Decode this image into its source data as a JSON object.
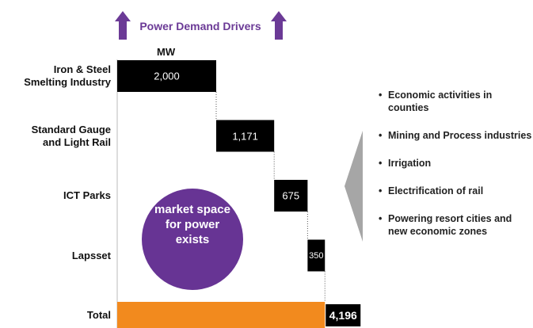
{
  "chart_data": {
    "type": "waterfall",
    "title": "Power Demand Drivers",
    "axis_label": "MW",
    "categories": [
      "Iron & Steel\nSmelting Industry",
      "Standard Gauge\nand Light Rail",
      "ICT Parks",
      "Lapsset",
      "Total"
    ],
    "values": [
      2000,
      1171,
      675,
      350,
      4196
    ],
    "value_labels": [
      "2,000",
      "1,171",
      "675",
      "350",
      "4,196"
    ],
    "color": "#000000",
    "total_color": "#f28a1e",
    "xlim": [
      0,
      4300
    ],
    "annotation": "market space for power exists",
    "bullets": [
      "Economic activities  in counties",
      "Mining and Process industries",
      "Irrigation",
      "Electrification of rail",
      "Powering  resort cities and new economic zones"
    ]
  }
}
